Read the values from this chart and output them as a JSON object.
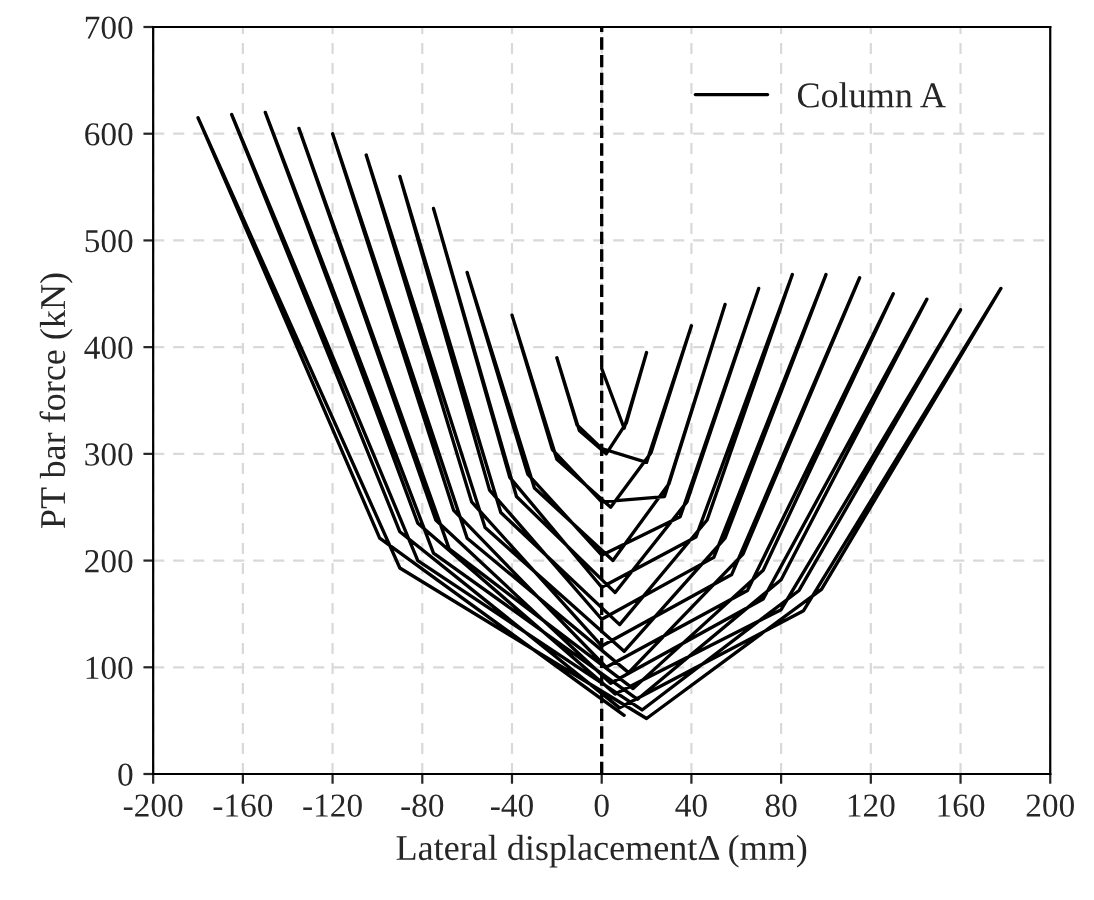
{
  "chart_data": {
    "type": "line",
    "xlabel": "Lateral displacementΔ (mm)",
    "ylabel": "PT bar force (kN)",
    "xlim": [
      -200,
      200
    ],
    "ylim": [
      0,
      700
    ],
    "xticks": [
      -200,
      -160,
      -120,
      -80,
      -40,
      0,
      40,
      80,
      120,
      160,
      200
    ],
    "yticks": [
      0,
      100,
      200,
      300,
      400,
      500,
      600,
      700
    ],
    "grid": true,
    "legend": "top right",
    "line_style": "solid",
    "marker": "none",
    "ref_lines": [
      {
        "axis": "x",
        "value": 0,
        "color": "#000000",
        "line_style": "dashed"
      }
    ],
    "series": [
      {
        "name": "Column A",
        "color": "#000000",
        "x": [
          0,
          10,
          20,
          11,
          2,
          -10,
          -20,
          -11,
          0,
          20,
          40,
          22,
          4,
          -20,
          -40,
          -22,
          0,
          28,
          55,
          30,
          5,
          -30,
          -60,
          -33,
          0,
          35,
          70,
          38,
          6,
          -38,
          -75,
          -41,
          0,
          42,
          85,
          47,
          8,
          -45,
          -90,
          -50,
          0,
          50,
          100,
          55,
          10,
          -52,
          -105,
          -58,
          0,
          58,
          115,
          63,
          12,
          -60,
          -120,
          -66,
          2,
          65,
          130,
          72,
          14,
          -68,
          -135,
          -74,
          4,
          72,
          145,
          80,
          16,
          -75,
          -150,
          -82,
          6,
          80,
          160,
          88,
          18,
          -82,
          -165,
          -90,
          8,
          90,
          178,
          98,
          20,
          -90,
          -180,
          -99,
          10
        ],
        "values": [
          380,
          324,
          395,
          329,
          300,
          322,
          390,
          327,
          305,
          292,
          420,
          301,
          250,
          295,
          430,
          304,
          255,
          260,
          440,
          272,
          200,
          268,
          470,
          281,
          205,
          241,
          455,
          255,
          170,
          260,
          530,
          278,
          175,
          222,
          468,
          238,
          140,
          245,
          560,
          266,
          145,
          203,
          468,
          221,
          115,
          231,
          580,
          255,
          120,
          187,
          465,
          206,
          95,
          221,
          600,
          247,
          100,
          172,
          450,
          191,
          80,
          211,
          605,
          238,
          85,
          164,
          445,
          182,
          70,
          207,
          620,
          235,
          75,
          154,
          435,
          172,
          60,
          200,
          618,
          227,
          62,
          153,
          455,
          173,
          52,
          193,
          615,
          221,
          55
        ]
      }
    ]
  }
}
